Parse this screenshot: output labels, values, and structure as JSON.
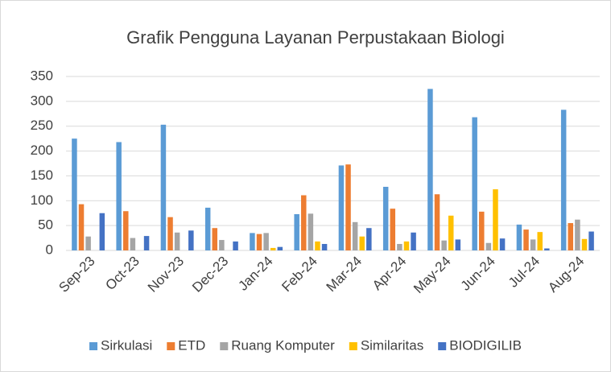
{
  "chart_data": {
    "type": "bar",
    "title": "Grafik Pengguna Layanan Perpustakaan Biologi",
    "categories": [
      "Sep-23",
      "Oct-23",
      "Nov-23",
      "Dec-23",
      "Jan-24",
      "Feb-24",
      "Mar-24",
      "Apr-24",
      "May-24",
      "Jun-24",
      "Jul-24",
      "Aug-24"
    ],
    "series": [
      {
        "name": "Sirkulasi",
        "color": "#5b9bd5",
        "values": [
          225,
          218,
          253,
          86,
          35,
          73,
          171,
          128,
          325,
          268,
          52,
          283
        ]
      },
      {
        "name": "ETD",
        "color": "#ed7d31",
        "values": [
          93,
          79,
          67,
          45,
          33,
          111,
          173,
          84,
          113,
          78,
          42,
          55
        ]
      },
      {
        "name": "Ruang Komputer",
        "color": "#a5a5a5",
        "values": [
          28,
          25,
          36,
          21,
          35,
          74,
          57,
          13,
          20,
          15,
          22,
          62
        ]
      },
      {
        "name": "Similaritas",
        "color": "#ffc000",
        "values": [
          0,
          0,
          0,
          0,
          5,
          18,
          28,
          18,
          70,
          123,
          37,
          23
        ]
      },
      {
        "name": "BIODIGILIB",
        "color": "#4472c4",
        "values": [
          75,
          29,
          40,
          18,
          7,
          13,
          45,
          36,
          22,
          24,
          4,
          38
        ]
      }
    ],
    "ylim": [
      0,
      350
    ],
    "yticks": [
      0,
      50,
      100,
      150,
      200,
      250,
      300,
      350
    ],
    "grid": true,
    "legend": "bottom"
  }
}
